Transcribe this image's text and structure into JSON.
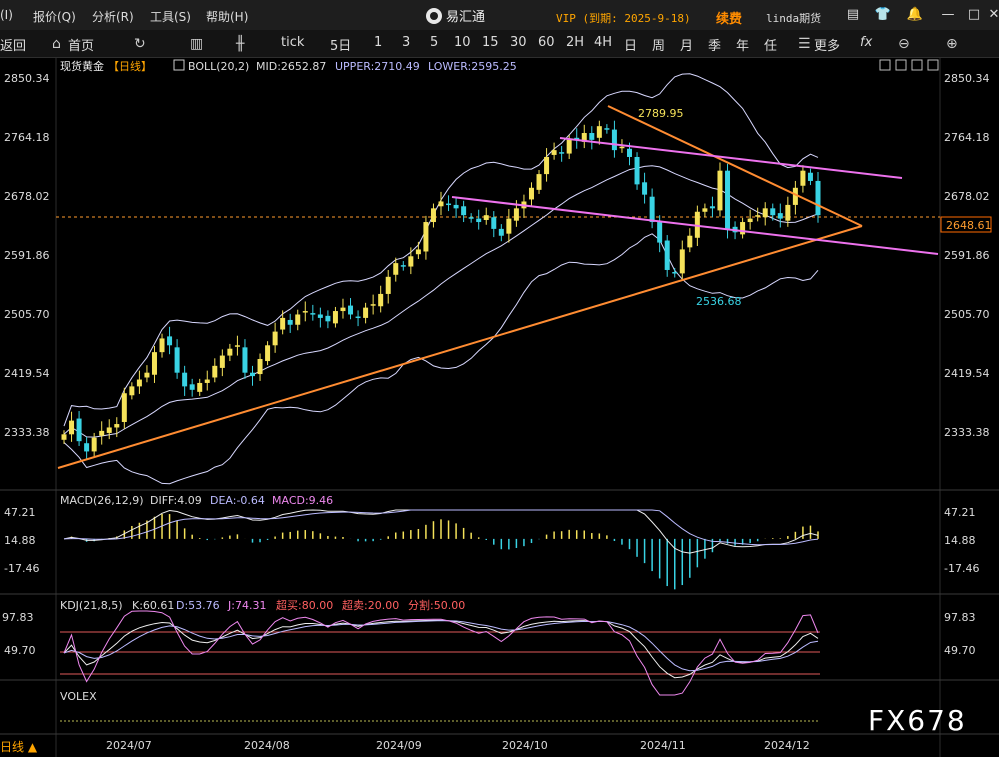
{
  "titlebar": {
    "menus": [
      "(I)",
      "报价(Q)",
      "分析(R)",
      "工具(S)",
      "帮助(H)"
    ],
    "app_title": "易汇通",
    "vip": "VIP (到期: 2025-9-18)",
    "renew": "续费",
    "user": "linda期货",
    "icons": [
      "calendar-icon",
      "shirt-icon",
      "bell-icon"
    ],
    "window_buttons": [
      "—",
      "□",
      "✕"
    ]
  },
  "toolbar": {
    "back": "返回",
    "home": "首页",
    "tick": "tick",
    "periods": [
      "5日",
      "1",
      "3",
      "5",
      "10",
      "15",
      "30",
      "60",
      "2H",
      "4H",
      "日",
      "周",
      "月",
      "季",
      "年",
      "任"
    ],
    "more": "更多",
    "fx": "fx"
  },
  "main_panel": {
    "symbol": "现货黄金",
    "period": "【日线】",
    "indicator": "BOLL(20,2)",
    "mid": "MID:2652.87",
    "upper": "UPPER:2710.49",
    "lower": "LOWER:2595.25",
    "price_ticks": [
      "2850.34",
      "2764.18",
      "2678.02",
      "2591.86",
      "2505.70",
      "2419.54",
      "2333.38"
    ],
    "current_price": "2648.61",
    "high_label": "2789.95",
    "low_label": "2536.68"
  },
  "macd_panel": {
    "title": "MACD(26,12,9)",
    "diff": "DIFF:4.09",
    "dea": "DEA:-0.64",
    "macd": "MACD:9.46",
    "ticks": [
      "47.21",
      "14.88",
      "-17.46"
    ]
  },
  "kdj_panel": {
    "title": "KDJ(21,8,5)",
    "k": "K:60.61",
    "d": "D:53.76",
    "j": "J:74.31",
    "overbought": "超买:80.00",
    "oversold": "超卖:20.00",
    "divider": "分割:50.00",
    "ticks": [
      "97.83",
      "49.70"
    ]
  },
  "volex_panel": {
    "title": "VOLEX"
  },
  "x_labels": [
    "2024/07",
    "2024/08",
    "2024/09",
    "2024/10",
    "2024/11",
    "2024/12"
  ],
  "footer": {
    "period": "日线 ▲",
    "brand": "FX678"
  },
  "colors": {
    "up": "#f5e25a",
    "down": "#39d3e4",
    "boll": "#d8d8ff",
    "trend": "#ff8c32",
    "channel": "#ee72ee"
  },
  "chart_data": [
    {
      "type": "candlestick",
      "title": "现货黄金【日线】",
      "ylim": [
        2290,
        2860
      ],
      "closes": [
        2330,
        2350,
        2320,
        2305,
        2325,
        2335,
        2340,
        2345,
        2390,
        2400,
        2410,
        2420,
        2450,
        2470,
        2460,
        2420,
        2400,
        2395,
        2405,
        2410,
        2430,
        2445,
        2455,
        2460,
        2420,
        2415,
        2440,
        2460,
        2480,
        2500,
        2490,
        2505,
        2510,
        2505,
        2500,
        2495,
        2510,
        2515,
        2505,
        2500,
        2515,
        2520,
        2535,
        2560,
        2580,
        2575,
        2590,
        2600,
        2640,
        2660,
        2670,
        2665,
        2660,
        2650,
        2645,
        2640,
        2650,
        2630,
        2620,
        2645,
        2660,
        2670,
        2690,
        2710,
        2735,
        2745,
        2740,
        2760,
        2760,
        2770,
        2760,
        2780,
        2775,
        2745,
        2750,
        2735,
        2695,
        2680,
        2640,
        2610,
        2570,
        2565,
        2600,
        2620,
        2655,
        2660,
        2660,
        2715,
        2630,
        2625,
        2640,
        2645,
        2650,
        2660,
        2650,
        2645,
        2665,
        2690,
        2715,
        2700,
        2650
      ]
    }
  ]
}
